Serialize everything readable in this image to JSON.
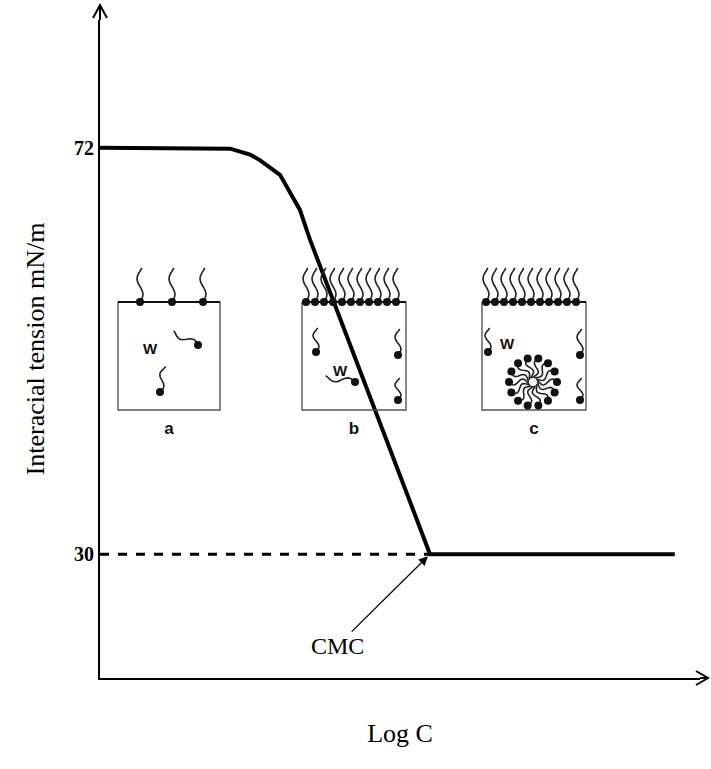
{
  "chart_data": {
    "type": "line",
    "y_label": "Interacial tension mN/m",
    "x_label": "Log C",
    "series": [
      {
        "x": [
          0,
          1.83,
          2.17,
          2.5,
          2.67,
          3.0,
          3.33,
          3.5,
          5.5,
          9.58
        ],
        "values": [
          72,
          72,
          71.9,
          71.3,
          70.7,
          69.2,
          65.6,
          62.5,
          30,
          30
        ],
        "color": "#000000",
        "line_style": "solid"
      },
      {
        "x": [
          0,
          5.5
        ],
        "values": [
          30,
          30
        ],
        "color": "#000000",
        "line_style": "dashed"
      }
    ],
    "xlim": [
      0,
      10
    ],
    "ylim": [
      17.2,
      85.2
    ],
    "yticks": [
      30,
      72
    ],
    "grid": false,
    "tick_labels": "y",
    "annotations": [
      {
        "text": "CMC",
        "x": 5.5,
        "y": 30
      }
    ],
    "insets": [
      {
        "label": "a",
        "text": "W"
      },
      {
        "label": "b",
        "text": "W"
      },
      {
        "label": "c",
        "text": "W"
      }
    ]
  }
}
